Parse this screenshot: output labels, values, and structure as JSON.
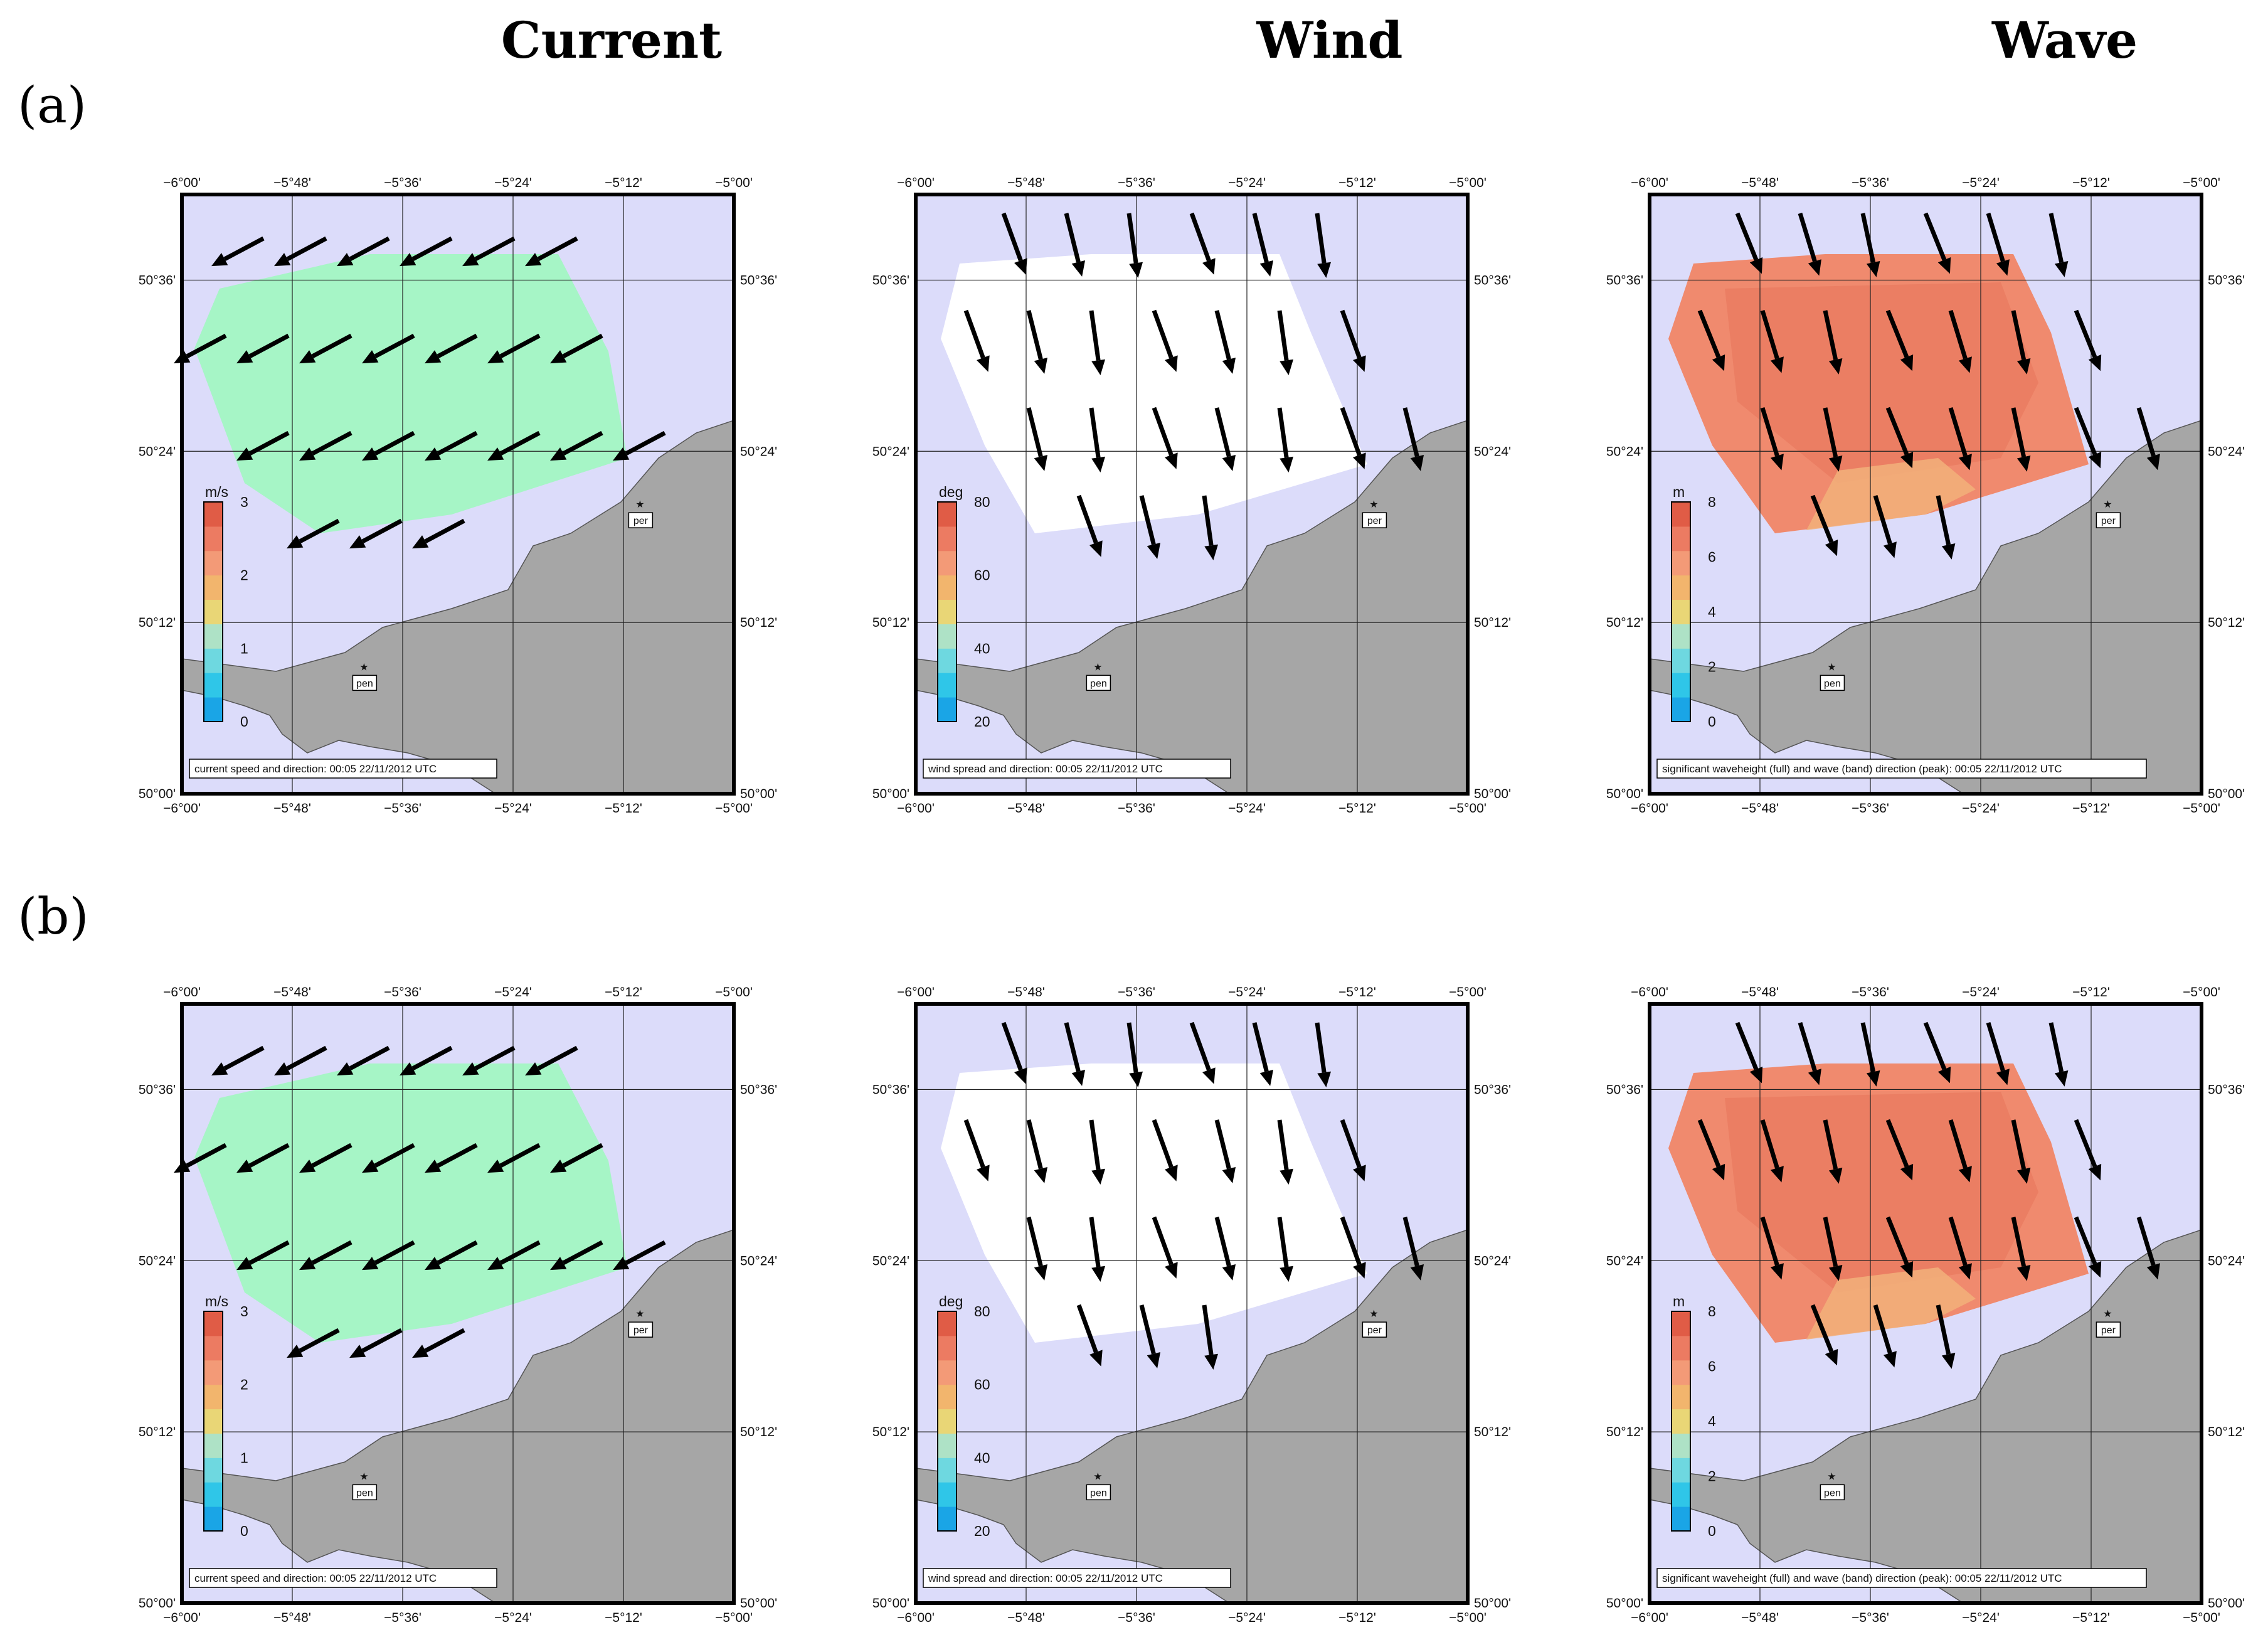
{
  "figure": {
    "column_titles": [
      "Current",
      "Wind",
      "Wave"
    ],
    "row_labels": [
      "(a)",
      "(b)"
    ]
  },
  "map": {
    "lon_ticks": [
      "−6°00'",
      "−5°48'",
      "−5°36'",
      "−5°24'",
      "−5°12'",
      "−5°00'"
    ],
    "lon_values": [
      -6.0,
      -5.8,
      -5.6,
      -5.4,
      -5.2,
      -5.0
    ],
    "lat_ticks": [
      "50°00'",
      "50°12'",
      "50°24'",
      "50°36'"
    ],
    "lat_values": [
      50.0,
      50.2,
      50.4,
      50.6
    ],
    "lon_range": [
      -6.0,
      -5.0
    ],
    "lat_range": [
      50.0,
      50.7
    ],
    "places": [
      {
        "label": "pen",
        "lon": -5.67,
        "lat": 50.15
      },
      {
        "label": "per",
        "lon": -5.17,
        "lat": 50.34
      }
    ],
    "colors": {
      "sea": "#dcdcfa",
      "land": "#a6a6a6",
      "current_field": "#a6f5c6",
      "wind_field": "#ffffff",
      "wave_field": "#f08a6e",
      "arrow": "#000000"
    }
  },
  "panels": [
    {
      "row": 0,
      "col": 0,
      "field": "current",
      "cb_unit": "m/s",
      "cb_ticks": [
        "0",
        "1",
        "2",
        "3"
      ],
      "caption": "current speed and direction: 00:05 22/11/2012 UTC"
    },
    {
      "row": 0,
      "col": 1,
      "field": "wind",
      "cb_unit": "deg",
      "cb_ticks": [
        "20",
        "40",
        "60",
        "80"
      ],
      "caption": "wind spread and direction: 00:05 22/11/2012 UTC"
    },
    {
      "row": 0,
      "col": 2,
      "field": "wave",
      "cb_unit": "m",
      "cb_ticks": [
        "0",
        "2",
        "4",
        "6",
        "8"
      ],
      "caption": "significant waveheight (full) and wave (band) direction (peak): 00:05 22/11/2012 UTC"
    },
    {
      "row": 1,
      "col": 0,
      "field": "current",
      "cb_unit": "m/s",
      "cb_ticks": [
        "0",
        "1",
        "2",
        "3"
      ],
      "caption": "current speed and direction: 00:05 22/11/2012 UTC"
    },
    {
      "row": 1,
      "col": 1,
      "field": "wind",
      "cb_unit": "deg",
      "cb_ticks": [
        "20",
        "40",
        "60",
        "80"
      ],
      "caption": "wind spread and direction: 00:05 22/11/2012 UTC"
    },
    {
      "row": 1,
      "col": 2,
      "field": "wave",
      "cb_unit": "m",
      "cb_ticks": [
        "0",
        "2",
        "4",
        "6",
        "8"
      ],
      "caption": "significant waveheight (full) and wave (band) direction (peak): 00:05 22/11/2012 UTC"
    }
  ]
}
